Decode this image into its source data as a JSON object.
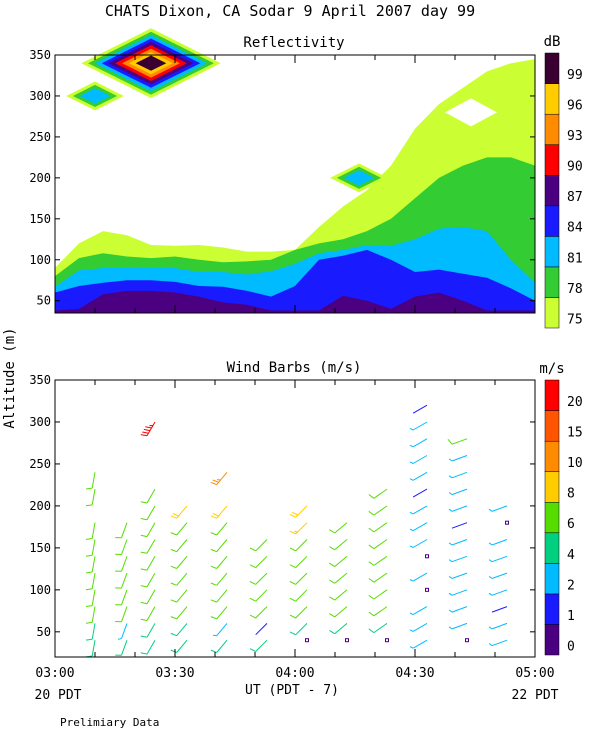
{
  "title": "CHATS Dixon, CA  Sodar   9 April 2007   day  99",
  "footer_note": "Prelimiary Data",
  "y_axis_label": "Altitude (m)",
  "x_axis": {
    "label": "UT  (PDT - 7)",
    "left_local": "20 PDT",
    "right_local": "22 PDT",
    "ticks": [
      "03:00",
      "03:30",
      "04:00",
      "04:30",
      "05:00"
    ]
  },
  "chart_data": [
    {
      "type": "heatmap",
      "title": "Reflectivity",
      "colorbar_unit": "dB",
      "colorbar_ticks": [
        "75",
        "78",
        "81",
        "84",
        "87",
        "90",
        "93",
        "96",
        "99"
      ],
      "colorbar_colors": [
        "#ccff33",
        "#33cc33",
        "#00bbff",
        "#1a1aff",
        "#4b0082",
        "#ff0000",
        "#ff8c00",
        "#ffcc00",
        "#3a0032"
      ],
      "xlim": [
        "03:00",
        "05:00"
      ],
      "ylim": [
        35,
        350
      ],
      "y_ticks": [
        50,
        100,
        150,
        200,
        250,
        300,
        350
      ],
      "x": [
        "03:00",
        "03:06",
        "03:12",
        "03:18",
        "03:24",
        "03:30",
        "03:36",
        "03:42",
        "03:48",
        "03:54",
        "04:00",
        "04:06",
        "04:12",
        "04:18",
        "04:24",
        "04:30",
        "04:36",
        "04:42",
        "04:48",
        "04:54",
        "05:00"
      ],
      "levels": [
        {
          "name": "75-78 dB",
          "top": [
            90,
            120,
            135,
            130,
            118,
            117,
            118,
            115,
            110,
            110,
            112,
            140,
            165,
            185,
            215,
            260,
            290,
            310,
            330,
            340,
            345
          ]
        },
        {
          "name": "78-81 dB",
          "top": [
            80,
            102,
            108,
            104,
            102,
            104,
            100,
            97,
            98,
            100,
            112,
            120,
            125,
            135,
            150,
            175,
            200,
            215,
            225,
            225,
            215
          ]
        },
        {
          "name": "81-84 dB",
          "top": [
            67,
            87,
            90,
            90,
            90,
            90,
            85,
            85,
            82,
            86,
            95,
            108,
            112,
            118,
            117,
            125,
            138,
            140,
            135,
            100,
            72
          ]
        },
        {
          "name": "84-87 dB",
          "top": [
            60,
            68,
            72,
            75,
            75,
            73,
            68,
            67,
            62,
            55,
            68,
            100,
            105,
            112,
            100,
            85,
            88,
            83,
            78,
            65,
            50
          ]
        },
        {
          "name": "87-90 dB",
          "top": [
            38,
            40,
            58,
            62,
            62,
            60,
            55,
            48,
            45,
            38,
            38,
            38,
            56,
            50,
            40,
            55,
            60,
            50,
            38,
            38,
            38
          ]
        }
      ],
      "features": [
        {
          "type": "spot",
          "x": "03:24",
          "y": 340,
          "peak_db": 99
        },
        {
          "type": "spot",
          "x": "03:10",
          "y": 300,
          "peak_db": 81
        },
        {
          "type": "spot",
          "x": "04:16",
          "y": 200,
          "peak_db": 81
        },
        {
          "type": "gap",
          "x": "04:44",
          "y": 280,
          "below_db": 75
        }
      ]
    },
    {
      "type": "scatter",
      "title": "Wind Barbs (m/s)",
      "colorbar_unit": "m/s",
      "colorbar_ticks": [
        "0",
        "1",
        "2",
        "4",
        "6",
        "8",
        "10",
        "15",
        "20"
      ],
      "colorbar_colors": [
        "#4b0082",
        "#1a1aff",
        "#00bbff",
        "#00d080",
        "#55dd00",
        "#ffcc00",
        "#ff8c00",
        "#ff5500",
        "#ff0000"
      ],
      "xlim": [
        "03:00",
        "05:00"
      ],
      "ylim": [
        20,
        350
      ],
      "y_ticks": [
        50,
        100,
        150,
        200,
        250,
        300,
        350
      ],
      "heights": [
        40,
        60,
        80,
        100,
        120,
        140,
        160,
        180,
        200,
        220,
        240,
        260,
        280,
        300,
        320,
        340
      ],
      "barb_columns": [
        {
          "time": "03:10",
          "direction_deg": 190,
          "speeds": [
            5,
            5,
            6,
            6,
            6,
            6,
            6,
            6,
            null,
            6,
            6,
            null,
            null,
            null,
            null,
            null
          ]
        },
        {
          "time": "03:18",
          "direction_deg": 200,
          "speeds": [
            5,
            3,
            6,
            6,
            6,
            6,
            6,
            6,
            null,
            null,
            null,
            null,
            null,
            null,
            null,
            null
          ]
        },
        {
          "time": "03:25",
          "direction_deg": 210,
          "speeds": [
            5,
            5,
            6,
            6,
            6,
            6,
            6,
            6,
            6,
            6,
            null,
            null,
            null,
            22,
            null,
            null
          ]
        },
        {
          "time": "03:33",
          "direction_deg": 220,
          "speeds": [
            5,
            5,
            6,
            6,
            6,
            6,
            6,
            6,
            9,
            null,
            null,
            null,
            null,
            null,
            null,
            null
          ]
        },
        {
          "time": "03:43",
          "direction_deg": 220,
          "speeds": [
            5,
            3,
            6,
            6,
            6,
            6,
            6,
            6,
            9,
            null,
            12,
            null,
            null,
            null,
            null,
            null
          ]
        },
        {
          "time": "03:53",
          "direction_deg": 225,
          "speeds": [
            5,
            1,
            6,
            6,
            6,
            6,
            6,
            null,
            null,
            null,
            null,
            null,
            null,
            null,
            null,
            null
          ]
        },
        {
          "time": "04:03",
          "direction_deg": 225,
          "speeds": [
            0,
            5,
            6,
            6,
            6,
            6,
            6,
            8,
            9,
            null,
            null,
            null,
            null,
            null,
            null,
            null
          ]
        },
        {
          "time": "04:13",
          "direction_deg": 230,
          "speeds": [
            0,
            5,
            6,
            6,
            6,
            6,
            6,
            6,
            null,
            null,
            null,
            null,
            null,
            null,
            null,
            null
          ]
        },
        {
          "time": "04:23",
          "direction_deg": 235,
          "speeds": [
            0,
            5,
            6,
            6,
            6,
            6,
            6,
            6,
            6,
            6,
            null,
            null,
            null,
            null,
            null,
            null
          ]
        },
        {
          "time": "04:33",
          "direction_deg": 240,
          "speeds": [
            2,
            2,
            2,
            0,
            2,
            0,
            2,
            2,
            2,
            1,
            2,
            2,
            2,
            2,
            1,
            null
          ]
        },
        {
          "time": "04:43",
          "direction_deg": 250,
          "speeds": [
            0,
            2,
            2,
            2,
            2,
            2,
            2,
            1,
            2,
            2,
            2,
            2,
            6,
            null,
            null,
            null
          ]
        },
        {
          "time": "04:53",
          "direction_deg": 250,
          "speeds": [
            2,
            2,
            1,
            2,
            2,
            2,
            2,
            0,
            2,
            null,
            null,
            null,
            null,
            null,
            null,
            null
          ]
        }
      ]
    }
  ]
}
